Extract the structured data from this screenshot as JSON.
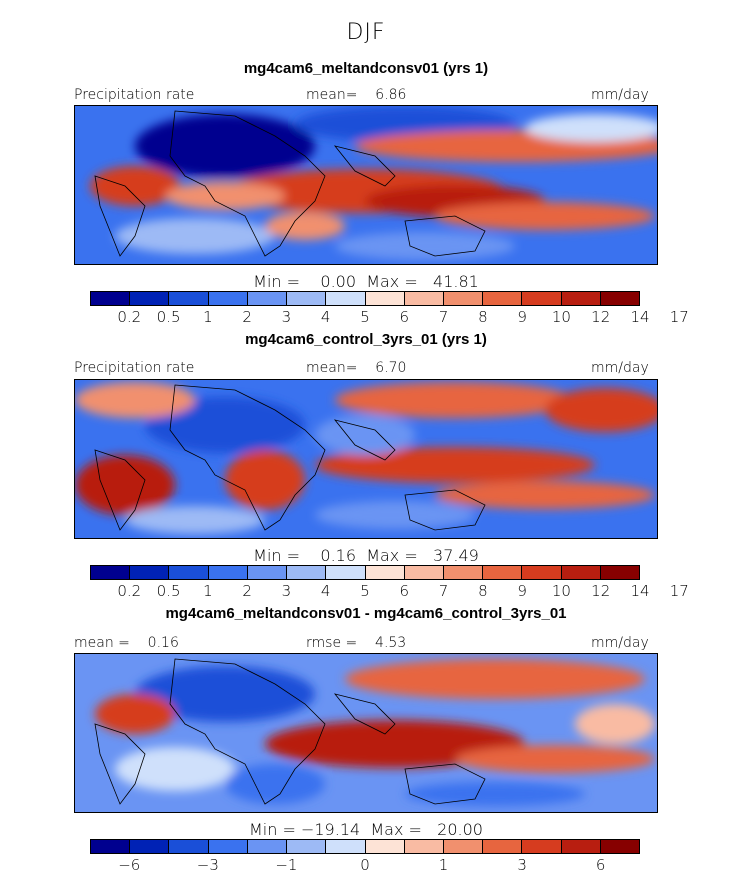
{
  "season": "DJF",
  "panels": [
    {
      "title": "mg4cam6_meltandconsv01 (yrs 1)",
      "left_label": "Precipitation rate",
      "center_label": "mean=    6.86",
      "right_label": "mm/day",
      "stats": "Min =    0.00  Max =   41.81",
      "colorbar": "abs"
    },
    {
      "title": "mg4cam6_control_3yrs_01 (yrs 1)",
      "left_label": "Precipitation rate",
      "center_label": "mean=    6.70",
      "right_label": "mm/day",
      "stats": "Min =    0.16  Max =   37.49",
      "colorbar": "abs"
    },
    {
      "title": "mg4cam6_meltandconsv01 - mg4cam6_control_3yrs_01",
      "left_label": "mean =    0.16",
      "center_label": "rmse =    4.53",
      "right_label": "mm/day",
      "stats": "Min = −19.14  Max =   20.00",
      "colorbar": "diff"
    }
  ],
  "colorbars": {
    "abs": {
      "colors": [
        "#00008f",
        "#0022b5",
        "#1a4fd8",
        "#3a72ef",
        "#6a94f3",
        "#9dbaf5",
        "#cfe0fb",
        "#fde3d6",
        "#f9bba3",
        "#f1906e",
        "#e7653f",
        "#d63c1f",
        "#b81e10",
        "#870000"
      ],
      "ticks": [
        "0.2",
        "0.5",
        "1",
        "2",
        "3",
        "4",
        "5",
        "6",
        "7",
        "8",
        "9",
        "10",
        "12",
        "14",
        "17"
      ]
    },
    "diff": {
      "colors": [
        "#00008f",
        "#0022b5",
        "#1a4fd8",
        "#3a72ef",
        "#6a94f3",
        "#9dbaf5",
        "#cfe0fb",
        "#fde3d6",
        "#f9bba3",
        "#f1906e",
        "#e7653f",
        "#d63c1f",
        "#b81e10",
        "#870000"
      ],
      "ticks": [
        "−6",
        "−3",
        "−1",
        "0",
        "1",
        "3",
        "6"
      ]
    }
  }
}
